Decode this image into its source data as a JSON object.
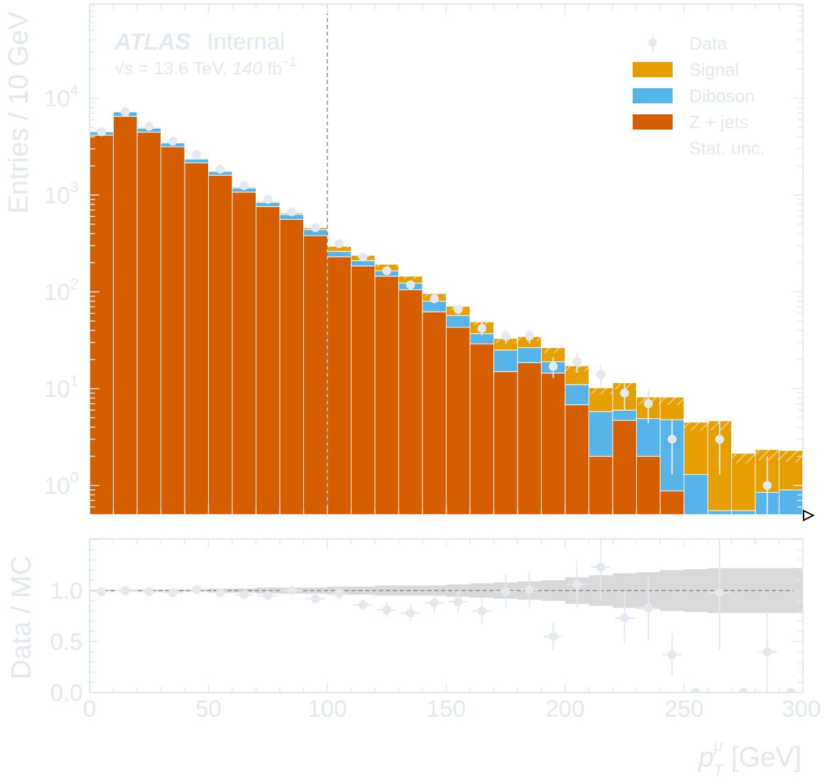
{
  "colors": {
    "axis": "#e3e9ef",
    "zjets": "#d55e00",
    "diboson": "#56b4e9",
    "signal": "#e69f00",
    "data": "#e3e9ef",
    "band": "#d9d9d9",
    "reference": "#888888"
  },
  "header": {
    "experiment": "ATLAS",
    "status": "Internal",
    "energy_prefix": "√",
    "energy_var": "s",
    "energy_text": " = 13.6 TeV, ",
    "lumi_value": "140",
    "lumi_unit": " fb",
    "lumi_exp": "−1"
  },
  "legend": {
    "placement": "top-right",
    "entries": [
      {
        "key": "data",
        "label": "Data",
        "style": "marker"
      },
      {
        "key": "signal",
        "label": "Signal",
        "style": "fill"
      },
      {
        "key": "diboson",
        "label": "Diboson",
        "style": "fill"
      },
      {
        "key": "zjets",
        "label": "Z + jets",
        "style": "fill"
      },
      {
        "key": "stat",
        "label": "Stat. unc.",
        "style": "hatch"
      }
    ]
  },
  "axis_labels": {
    "main_ylabel": "Entries / 10 GeV",
    "ratio_ylabel": "Data / MC",
    "xlabel_var": "p",
    "xlabel_sub": "T",
    "xlabel_sup": "μ",
    "xlabel_unit": " [GeV]"
  },
  "ticks": {
    "main_y": [
      {
        "base": "10",
        "exp": "0",
        "value": 1
      },
      {
        "base": "10",
        "exp": "1",
        "value": 10
      },
      {
        "base": "10",
        "exp": "2",
        "value": 100
      },
      {
        "base": "10",
        "exp": "3",
        "value": 1000
      },
      {
        "base": "10",
        "exp": "4",
        "value": 10000
      }
    ],
    "ratio_y": [
      "0.0",
      "0.5",
      "1.0"
    ],
    "x": [
      "0",
      "50",
      "100",
      "150",
      "200",
      "250",
      "300"
    ]
  },
  "chart_data": [
    {
      "type": "bar",
      "stacked": true,
      "scale": "log",
      "bin_edges": [
        0,
        10,
        20,
        30,
        40,
        50,
        60,
        70,
        80,
        90,
        100,
        110,
        120,
        130,
        140,
        150,
        160,
        170,
        180,
        190,
        200,
        210,
        220,
        230,
        240,
        250,
        260,
        270,
        280,
        290,
        300
      ],
      "xlim": [
        0,
        300
      ],
      "ylim": [
        0.5,
        100000
      ],
      "ylabel": "Entries / 10 GeV",
      "series": [
        {
          "name": "Z + jets",
          "key": "zjets",
          "values": [
            4150,
            6500,
            4450,
            3150,
            2150,
            1600,
            1070,
            760,
            560,
            380,
            230,
            185,
            145,
            105,
            62,
            43,
            29,
            15,
            18.5,
            14.5,
            6.8,
            2,
            4.7,
            2,
            0.88,
            0.3,
            0,
            0,
            0,
            0
          ]
        },
        {
          "name": "Diboson",
          "key": "diboson",
          "values": [
            350,
            700,
            450,
            300,
            200,
            150,
            110,
            80,
            70,
            60,
            32,
            25,
            20,
            18,
            18,
            14,
            8,
            10,
            8,
            4.5,
            4.2,
            3.8,
            1.3,
            2.9,
            3.9,
            1.0,
            0.55,
            0.55,
            0.85,
            0.9
          ]
        },
        {
          "name": "Signal",
          "key": "signal",
          "values": [
            80,
            130,
            100,
            70,
            50,
            40,
            30,
            20,
            20,
            20,
            33,
            28,
            28,
            22,
            16,
            14,
            12,
            8,
            8,
            7.5,
            6.2,
            4.4,
            5.5,
            3.3,
            3.4,
            3.2,
            4.1,
            1.6,
            1.5,
            1.4
          ]
        }
      ],
      "data_points": {
        "name": "Data",
        "x": [
          5,
          15,
          25,
          35,
          45,
          55,
          65,
          75,
          85,
          95,
          105,
          115,
          125,
          135,
          145,
          155,
          165,
          175,
          185,
          195,
          205,
          215,
          225,
          235,
          245,
          255,
          265,
          275,
          285,
          295
        ],
        "y": [
          4500,
          7200,
          5100,
          3600,
          2600,
          1850,
          1250,
          900,
          670,
          460,
          315,
          230,
          165,
          118,
          85,
          66,
          42,
          35,
          35,
          17,
          19,
          14,
          9,
          7,
          3,
          0,
          3,
          0,
          1,
          0
        ],
        "yerr": [
          67,
          85,
          71,
          60,
          51,
          43,
          35,
          30,
          26,
          21,
          18,
          15,
          13,
          11,
          9,
          8,
          6.5,
          5.9,
          5.9,
          4.1,
          4.4,
          3.7,
          3,
          2.6,
          1.7,
          0,
          1.7,
          0,
          1,
          0
        ]
      },
      "annotations": [
        {
          "type": "vline",
          "x": 100,
          "style": "dashed"
        }
      ]
    },
    {
      "type": "scatter",
      "ylabel": "Data / MC",
      "xlabel": "p_T^μ [GeV]",
      "xlim": [
        0,
        300
      ],
      "ylim": [
        0.0,
        1.5
      ],
      "reference_line": 1.0,
      "stat_band_halfwidth": [
        0.01,
        0.01,
        0.01,
        0.01,
        0.01,
        0.02,
        0.02,
        0.03,
        0.03,
        0.03,
        0.04,
        0.04,
        0.05,
        0.05,
        0.05,
        0.06,
        0.07,
        0.08,
        0.09,
        0.1,
        0.13,
        0.15,
        0.17,
        0.18,
        0.2,
        0.21,
        0.22,
        0.22,
        0.22,
        0.22
      ],
      "x": [
        5,
        15,
        25,
        35,
        45,
        55,
        65,
        75,
        85,
        95,
        105,
        115,
        125,
        135,
        145,
        155,
        165,
        175,
        185,
        195,
        205,
        215,
        225,
        235,
        245,
        255,
        265,
        275,
        285,
        295
      ],
      "y": [
        0.99,
        1.0,
        0.99,
        0.98,
        1.01,
        0.98,
        0.96,
        0.95,
        1.0,
        0.92,
        0.97,
        0.86,
        0.81,
        0.78,
        0.88,
        0.89,
        0.8,
        0.99,
        1.01,
        0.55,
        1.06,
        1.23,
        0.73,
        0.83,
        0.37,
        0.0,
        0.98,
        0.0,
        0.4,
        0.0
      ],
      "yerr": [
        0.02,
        0.02,
        0.02,
        0.02,
        0.02,
        0.02,
        0.03,
        0.03,
        0.04,
        0.04,
        0.06,
        0.06,
        0.07,
        0.08,
        0.1,
        0.11,
        0.13,
        0.17,
        0.17,
        0.14,
        0.23,
        0.33,
        0.25,
        0.32,
        0.21,
        0.0,
        0.56,
        0.0,
        0.4,
        0.0
      ]
    }
  ]
}
